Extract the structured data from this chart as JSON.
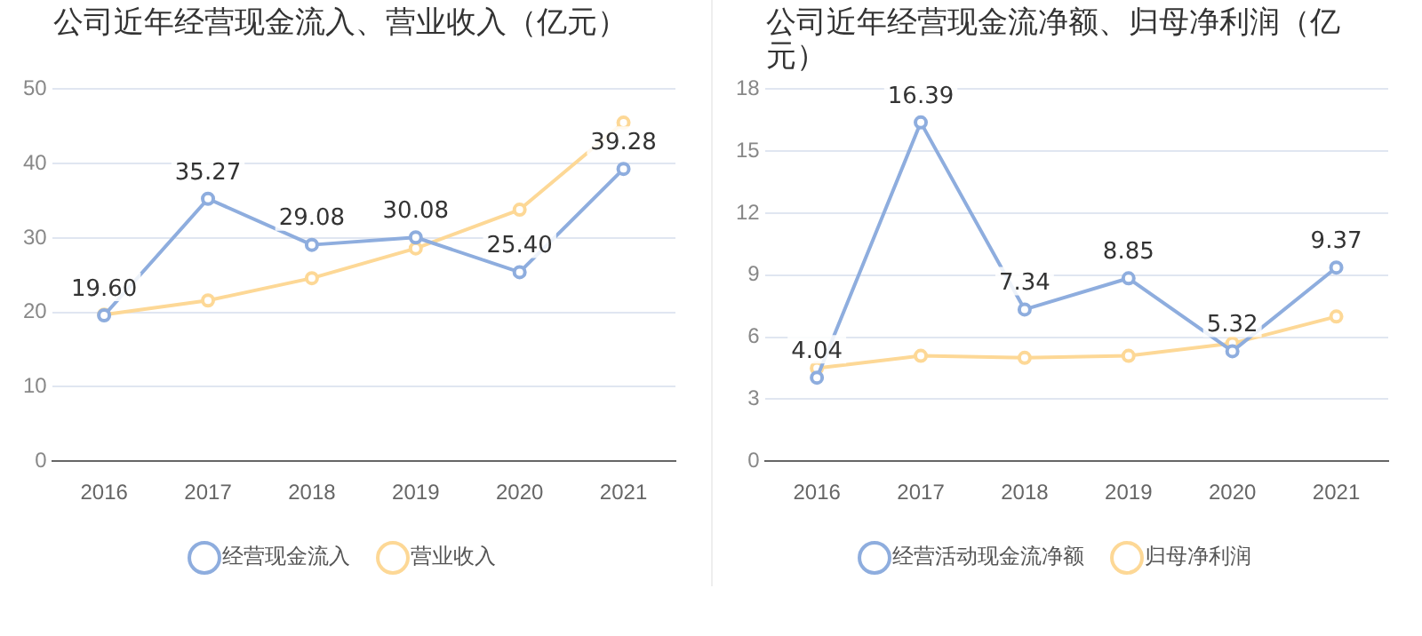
{
  "chart_data": [
    {
      "type": "line",
      "title": "公司近年经营现金流入、营业收入（亿元）",
      "categories": [
        "2016",
        "2017",
        "2018",
        "2019",
        "2020",
        "2021"
      ],
      "ylim": [
        0,
        50
      ],
      "yticks": [
        0,
        10,
        20,
        30,
        40,
        50
      ],
      "grid": "y",
      "legend": "bottom",
      "marker": "circle",
      "series": [
        {
          "name": "经营现金流入",
          "color": "#8eadde",
          "values": [
            19.6,
            35.27,
            29.08,
            30.08,
            25.4,
            39.28
          ],
          "value_labels": [
            "19.60",
            "35.27",
            "29.08",
            "30.08",
            "25.40",
            "39.28"
          ]
        },
        {
          "name": "营业收入",
          "color": "#fdd896",
          "values": [
            19.7,
            21.6,
            24.6,
            28.6,
            33.8,
            45.5
          ]
        }
      ]
    },
    {
      "type": "line",
      "title": "公司近年经营现金流净额、归母净利润（亿元）",
      "categories": [
        "2016",
        "2017",
        "2018",
        "2019",
        "2020",
        "2021"
      ],
      "ylim": [
        0,
        18
      ],
      "yticks": [
        0,
        3,
        6,
        9,
        12,
        15,
        18
      ],
      "grid": "y",
      "legend": "bottom",
      "marker": "circle",
      "series": [
        {
          "name": "经营活动现金流净额",
          "color": "#8eadde",
          "values": [
            4.04,
            16.39,
            7.34,
            8.85,
            5.32,
            9.37
          ],
          "value_labels": [
            "4.04",
            "16.39",
            "7.34",
            "8.85",
            "5.32",
            "9.37"
          ]
        },
        {
          "name": "归母净利润",
          "color": "#fdd896",
          "values": [
            4.5,
            5.1,
            5.0,
            5.1,
            5.7,
            7.0
          ]
        }
      ]
    }
  ]
}
